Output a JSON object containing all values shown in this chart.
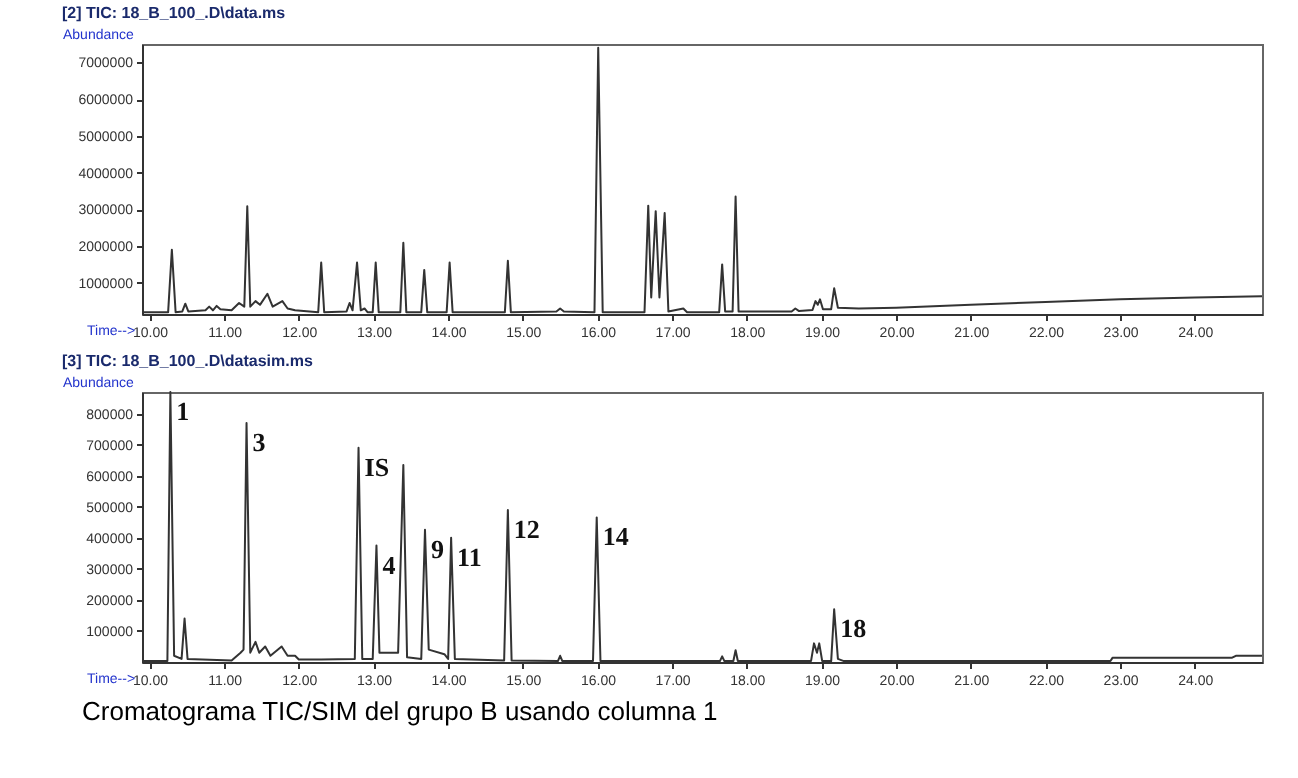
{
  "chart_data": [
    {
      "type": "line",
      "title": "[2] TIC: 18_B_100_.D\\data.ms",
      "xlabel": "Time-->",
      "ylabel": "Abundance",
      "x": [
        9.9,
        10.25,
        10.3,
        10.35,
        10.44,
        10.48,
        10.52,
        10.75,
        10.8,
        10.85,
        10.9,
        10.95,
        11.1,
        11.2,
        11.27,
        11.31,
        11.35,
        11.42,
        11.48,
        11.58,
        11.65,
        11.78,
        11.85,
        11.95,
        12.26,
        12.3,
        12.34,
        12.64,
        12.68,
        12.72,
        12.78,
        12.83,
        12.88,
        12.92,
        12.99,
        13.03,
        13.07,
        13.36,
        13.4,
        13.44,
        13.64,
        13.68,
        13.72,
        13.98,
        14.02,
        14.06,
        14.76,
        14.8,
        14.84,
        15.45,
        15.5,
        15.55,
        15.96,
        16.01,
        16.07,
        16.63,
        16.68,
        16.72,
        16.78,
        16.83,
        16.9,
        16.95,
        17.15,
        17.2,
        17.63,
        17.67,
        17.71,
        17.81,
        17.85,
        17.89,
        18.6,
        18.65,
        18.7,
        18.88,
        18.92,
        18.95,
        18.98,
        19.02,
        19.13,
        19.17,
        19.22,
        19.5,
        20.0,
        21.0,
        22.0,
        23.0,
        24.0,
        24.9
      ],
      "series": [
        {
          "color": "#333333",
          "values": [
            200000,
            200000,
            1900000,
            200000,
            220000,
            430000,
            220000,
            250000,
            350000,
            250000,
            370000,
            280000,
            250000,
            450000,
            350000,
            3080000,
            350000,
            500000,
            400000,
            700000,
            350000,
            500000,
            300000,
            250000,
            200000,
            1550000,
            200000,
            220000,
            450000,
            250000,
            1550000,
            250000,
            300000,
            200000,
            200000,
            1550000,
            200000,
            200000,
            2090000,
            200000,
            200000,
            1350000,
            200000,
            200000,
            1550000,
            200000,
            200000,
            1600000,
            200000,
            220000,
            300000,
            220000,
            200000,
            7400000,
            200000,
            200000,
            3100000,
            600000,
            2950000,
            600000,
            2900000,
            220000,
            300000,
            200000,
            200000,
            1500000,
            220000,
            220000,
            3350000,
            220000,
            220000,
            300000,
            230000,
            260000,
            500000,
            400000,
            550000,
            280000,
            280000,
            850000,
            320000,
            300000,
            320000,
            400000,
            480000,
            550000,
            600000,
            630000
          ]
        }
      ],
      "xlim": [
        9.9,
        24.9
      ],
      "ylim": [
        150000,
        7500000
      ],
      "xticks": [
        {
          "value": 10,
          "label": "10.00"
        },
        {
          "value": 11,
          "label": "11.00"
        },
        {
          "value": 12,
          "label": "12.00"
        },
        {
          "value": 13,
          "label": "13.00"
        },
        {
          "value": 14,
          "label": "14.00"
        },
        {
          "value": 15,
          "label": "15.00"
        },
        {
          "value": 16,
          "label": "16.00"
        },
        {
          "value": 17,
          "label": "17.00"
        },
        {
          "value": 18,
          "label": "18.00"
        },
        {
          "value": 19,
          "label": "19.00"
        },
        {
          "value": 20,
          "label": "20.00"
        },
        {
          "value": 21,
          "label": "21.00"
        },
        {
          "value": 22,
          "label": "22.00"
        },
        {
          "value": 23,
          "label": "23.00"
        },
        {
          "value": 24,
          "label": "24.00"
        }
      ],
      "yticks": [
        1000000,
        2000000,
        3000000,
        4000000,
        5000000,
        6000000,
        7000000
      ],
      "grid": false
    },
    {
      "type": "line",
      "title": "[3] TIC: 18_B_100_.D\\datasim.ms",
      "xlabel": "Time-->",
      "ylabel": "Abundance",
      "x": [
        9.9,
        10.24,
        10.28,
        10.33,
        10.43,
        10.47,
        10.51,
        11.1,
        11.22,
        11.26,
        11.3,
        11.35,
        11.42,
        11.47,
        11.55,
        11.62,
        11.77,
        11.85,
        11.95,
        12.0,
        12.3,
        12.75,
        12.8,
        12.85,
        12.99,
        13.04,
        13.08,
        13.33,
        13.4,
        13.45,
        13.64,
        13.69,
        13.74,
        13.95,
        14.0,
        14.04,
        14.09,
        14.75,
        14.8,
        14.85,
        15.47,
        15.5,
        15.53,
        15.94,
        15.99,
        16.04,
        17.64,
        17.67,
        17.7,
        17.82,
        17.85,
        17.88,
        18.86,
        18.9,
        18.94,
        18.97,
        19.01,
        19.13,
        19.17,
        19.22,
        19.3,
        22.87,
        22.9,
        24.5,
        24.55,
        24.9
      ],
      "series": [
        {
          "color": "#333333",
          "values": [
            3000,
            3000,
            870000,
            20000,
            10000,
            140000,
            10000,
            5000,
            30000,
            40000,
            770000,
            30000,
            65000,
            30000,
            50000,
            20000,
            50000,
            20000,
            20000,
            8000,
            8000,
            10000,
            690000,
            10000,
            10000,
            375000,
            30000,
            30000,
            635000,
            15000,
            10000,
            426000,
            40000,
            25000,
            10000,
            400000,
            10000,
            5000,
            490000,
            5000,
            3000,
            20000,
            3000,
            3000,
            466000,
            3000,
            3000,
            18000,
            3000,
            3000,
            38000,
            3000,
            3000,
            60000,
            30000,
            60000,
            3000,
            3000,
            170000,
            10000,
            3000,
            3000,
            14000,
            14000,
            20000,
            20000
          ]
        }
      ],
      "xlim": [
        9.9,
        24.9
      ],
      "ylim": [
        0,
        870000
      ],
      "xticks": [
        {
          "value": 10,
          "label": "10.00"
        },
        {
          "value": 11,
          "label": "11.00"
        },
        {
          "value": 12,
          "label": "12.00"
        },
        {
          "value": 13,
          "label": "13.00"
        },
        {
          "value": 14,
          "label": "14.00"
        },
        {
          "value": 15,
          "label": "15.00"
        },
        {
          "value": 16,
          "label": "16.00"
        },
        {
          "value": 17,
          "label": "17.00"
        },
        {
          "value": 18,
          "label": "18.00"
        },
        {
          "value": 19,
          "label": "19.00"
        },
        {
          "value": 20,
          "label": "20.00"
        },
        {
          "value": 21,
          "label": "21.00"
        },
        {
          "value": 22,
          "label": "22.00"
        },
        {
          "value": 23,
          "label": "23.00"
        },
        {
          "value": 24,
          "label": "24.00"
        }
      ],
      "yticks": [
        100000,
        200000,
        300000,
        400000,
        500000,
        600000,
        700000,
        800000
      ],
      "grid": false,
      "annotations": [
        {
          "text": "1",
          "x": 10.28,
          "y": 870000
        },
        {
          "text": "3",
          "x": 11.3,
          "y": 770000
        },
        {
          "text": "IS",
          "x": 12.8,
          "y": 690000
        },
        {
          "text": "4",
          "x": 13.04,
          "y": 375000
        },
        {
          "text": "9",
          "x": 13.69,
          "y": 426000
        },
        {
          "text": "11",
          "x": 14.04,
          "y": 400000
        },
        {
          "text": "12",
          "x": 14.8,
          "y": 490000
        },
        {
          "text": "14",
          "x": 15.99,
          "y": 466000
        },
        {
          "text": "18",
          "x": 19.17,
          "y": 170000
        },
        "Cromatograma  TIC/SIM del grupo B usando columna 1"
      ]
    }
  ]
}
